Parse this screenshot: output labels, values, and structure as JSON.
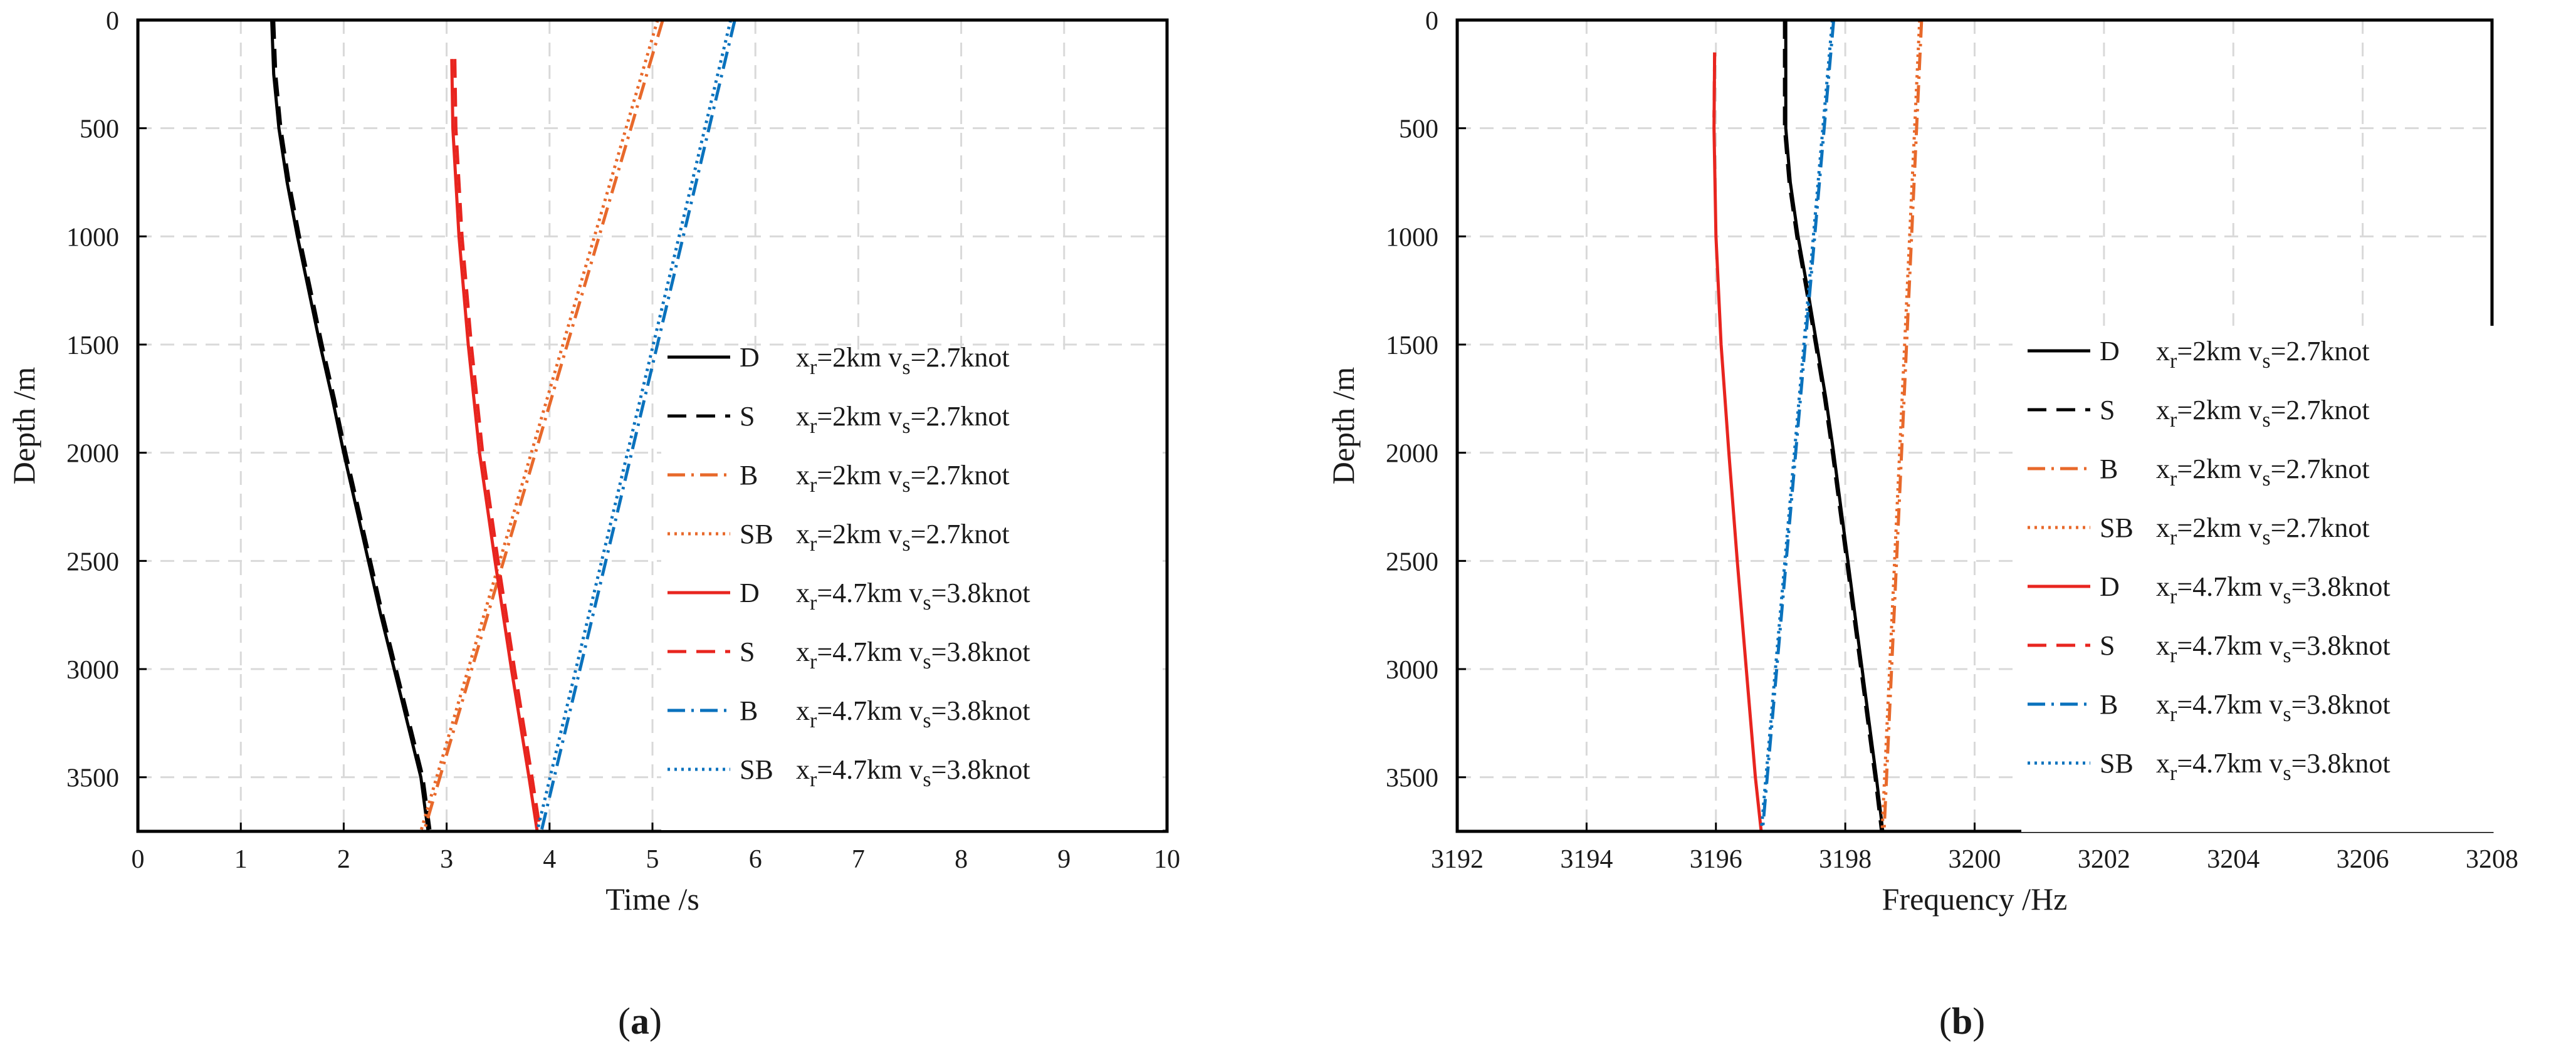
{
  "chart_data": [
    {
      "type": "line",
      "panel_label": "(a)",
      "xlabel": "Time /s",
      "ylabel": "Depth /m",
      "xlim": [
        0,
        10
      ],
      "ylim": [
        0,
        3750
      ],
      "y_inverted": true,
      "xticks": [
        "0",
        "1",
        "2",
        "3",
        "4",
        "5",
        "6",
        "7",
        "8",
        "9",
        "10"
      ],
      "yticks": [
        "0",
        "500",
        "1000",
        "1500",
        "2000",
        "2500",
        "3000",
        "3500"
      ],
      "grid": true,
      "legend_position": "right",
      "series": [
        {
          "name": "D",
          "label": "x_r=2km v_s=2.7knot",
          "color": "#000000",
          "style": "solid",
          "points": [
            [
              1.3,
              0
            ],
            [
              1.32,
              250
            ],
            [
              1.37,
              500
            ],
            [
              1.45,
              750
            ],
            [
              1.55,
              1000
            ],
            [
              1.66,
              1250
            ],
            [
              1.77,
              1500
            ],
            [
              1.89,
              1750
            ],
            [
              2.0,
              2000
            ],
            [
              2.12,
              2250
            ],
            [
              2.24,
              2500
            ],
            [
              2.36,
              2750
            ],
            [
              2.49,
              3000
            ],
            [
              2.62,
              3250
            ],
            [
              2.75,
              3500
            ],
            [
              2.82,
              3750
            ]
          ]
        },
        {
          "name": "S",
          "label": "x_r=2km v_s=2.7knot",
          "color": "#000000",
          "style": "dashed",
          "points": [
            [
              1.32,
              0
            ],
            [
              1.34,
              250
            ],
            [
              1.39,
              500
            ],
            [
              1.47,
              750
            ],
            [
              1.57,
              1000
            ],
            [
              1.68,
              1250
            ],
            [
              1.79,
              1500
            ],
            [
              1.91,
              1750
            ],
            [
              2.02,
              2000
            ],
            [
              2.14,
              2250
            ],
            [
              2.26,
              2500
            ],
            [
              2.38,
              2750
            ],
            [
              2.51,
              3000
            ],
            [
              2.64,
              3250
            ],
            [
              2.77,
              3500
            ],
            [
              2.84,
              3750
            ]
          ]
        },
        {
          "name": "B",
          "label": "x_r=2km v_s=2.7knot",
          "color": "#e8692b",
          "style": "dashdot",
          "points": [
            [
              5.1,
              0
            ],
            [
              2.78,
              3750
            ]
          ]
        },
        {
          "name": "SB",
          "label": "x_r=2km v_s=2.7knot",
          "color": "#e8692b",
          "style": "dotted",
          "points": [
            [
              5.05,
              0
            ],
            [
              2.75,
              3750
            ]
          ]
        },
        {
          "name": "D",
          "label": "x_r=4.7km v_s=3.8knot",
          "color": "#e8251f",
          "style": "solid",
          "points": [
            [
              3.05,
              180
            ],
            [
              3.06,
              500
            ],
            [
              3.12,
              1000
            ],
            [
              3.21,
              1500
            ],
            [
              3.32,
              2000
            ],
            [
              3.47,
              2500
            ],
            [
              3.63,
              3000
            ],
            [
              3.8,
              3500
            ],
            [
              3.88,
              3750
            ]
          ]
        },
        {
          "name": "S",
          "label": "x_r=4.7km v_s=3.8knot",
          "color": "#e8251f",
          "style": "dashed",
          "points": [
            [
              3.08,
              180
            ],
            [
              3.09,
              500
            ],
            [
              3.15,
              1000
            ],
            [
              3.24,
              1500
            ],
            [
              3.35,
              2000
            ],
            [
              3.5,
              2500
            ],
            [
              3.66,
              3000
            ],
            [
              3.83,
              3500
            ],
            [
              3.91,
              3750
            ]
          ]
        },
        {
          "name": "B",
          "label": "x_r=4.7km v_s=3.8knot",
          "color": "#0a72bd",
          "style": "dashdot",
          "points": [
            [
              5.8,
              0
            ],
            [
              3.92,
              3750
            ]
          ]
        },
        {
          "name": "SB",
          "label": "x_r=4.7km v_s=3.8knot",
          "color": "#0a72bd",
          "style": "dotted",
          "points": [
            [
              5.76,
              0
            ],
            [
              3.88,
              3750
            ]
          ]
        }
      ]
    },
    {
      "type": "line",
      "panel_label": "(b)",
      "xlabel": "Frequency /Hz",
      "ylabel": "Depth /m",
      "xlim": [
        3192,
        3208
      ],
      "ylim": [
        0,
        3750
      ],
      "y_inverted": true,
      "xticks": [
        "3192",
        "3194",
        "3196",
        "3198",
        "3200",
        "3202",
        "3204",
        "3206",
        "3208"
      ],
      "yticks": [
        "0",
        "500",
        "1000",
        "1500",
        "2000",
        "2500",
        "3000",
        "3500"
      ],
      "grid": true,
      "legend_position": "right",
      "series": [
        {
          "name": "D",
          "label": "x_r=2km v_s=2.7knot",
          "color": "#000000",
          "style": "solid",
          "points": [
            [
              3197.08,
              0
            ],
            [
              3197.08,
              500
            ],
            [
              3197.15,
              750
            ],
            [
              3197.27,
              1000
            ],
            [
              3197.42,
              1250
            ],
            [
              3197.56,
              1500
            ],
            [
              3197.7,
              1750
            ],
            [
              3197.82,
              2000
            ],
            [
              3197.93,
              2250
            ],
            [
              3198.04,
              2500
            ],
            [
              3198.15,
              2750
            ],
            [
              3198.26,
              3000
            ],
            [
              3198.37,
              3250
            ],
            [
              3198.48,
              3500
            ],
            [
              3198.58,
              3750
            ]
          ]
        },
        {
          "name": "S",
          "label": "x_r=2km v_s=2.7knot",
          "color": "#000000",
          "style": "dashed",
          "points": [
            [
              3197.06,
              0
            ],
            [
              3197.06,
              500
            ],
            [
              3197.13,
              750
            ],
            [
              3197.25,
              1000
            ],
            [
              3197.4,
              1250
            ],
            [
              3197.54,
              1500
            ],
            [
              3197.68,
              1750
            ],
            [
              3197.8,
              2000
            ],
            [
              3197.91,
              2250
            ],
            [
              3198.02,
              2500
            ],
            [
              3198.13,
              2750
            ],
            [
              3198.24,
              3000
            ],
            [
              3198.35,
              3250
            ],
            [
              3198.46,
              3500
            ],
            [
              3198.56,
              3750
            ]
          ]
        },
        {
          "name": "B",
          "label": "x_r=2km v_s=2.7knot",
          "color": "#e8692b",
          "style": "dashdot",
          "points": [
            [
              3199.18,
              0
            ],
            [
              3198.6,
              3750
            ]
          ]
        },
        {
          "name": "SB",
          "label": "x_r=2km v_s=2.7knot",
          "color": "#e8692b",
          "style": "dotted",
          "points": [
            [
              3199.15,
              0
            ],
            [
              3198.57,
              3750
            ]
          ]
        },
        {
          "name": "D",
          "label": "x_r=4.7km v_s=3.8knot",
          "color": "#e8251f",
          "style": "solid",
          "points": [
            [
              3195.98,
              150
            ],
            [
              3195.97,
              500
            ],
            [
              3196.0,
              1000
            ],
            [
              3196.08,
              1500
            ],
            [
              3196.2,
              2000
            ],
            [
              3196.33,
              2500
            ],
            [
              3196.47,
              3000
            ],
            [
              3196.61,
              3500
            ],
            [
              3196.7,
              3750
            ]
          ]
        },
        {
          "name": "S",
          "label": "x_r=4.7km v_s=3.8knot",
          "color": "#e8251f",
          "style": "dashed",
          "points": [
            [
              3195.98,
              150
            ],
            [
              3195.97,
              450
            ]
          ]
        },
        {
          "name": "B",
          "label": "x_r=4.7km v_s=3.8knot",
          "color": "#0a72bd",
          "style": "dashdot",
          "points": [
            [
              3197.82,
              0
            ],
            [
              3196.72,
              3750
            ]
          ]
        },
        {
          "name": "SB",
          "label": "x_r=4.7km v_s=3.8knot",
          "color": "#0a72bd",
          "style": "dotted",
          "points": [
            [
              3197.8,
              0
            ],
            [
              3196.7,
              3750
            ]
          ]
        }
      ]
    }
  ]
}
